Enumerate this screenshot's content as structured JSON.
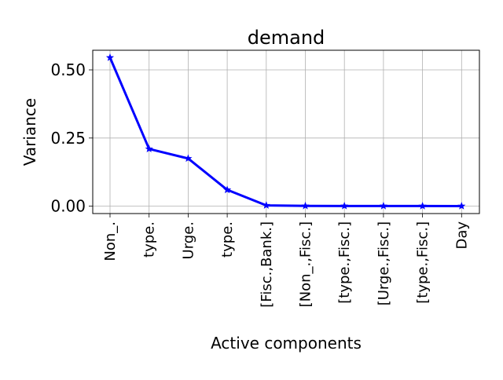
{
  "chart_data": {
    "type": "line",
    "title": "demand",
    "xlabel": "Active components",
    "ylabel": "Variance",
    "categories": [
      "Non_.",
      "type.",
      "Urge.",
      "type.",
      "[Fisc.,Bank.]",
      "[Non_.,Fisc.]",
      "[type.,Fisc.]",
      "[Urge.,Fisc.]",
      "[type.,Fisc.]",
      "Day"
    ],
    "series": [
      {
        "values": [
          0.545,
          0.21,
          0.175,
          0.06,
          0.003,
          0.001,
          0.0008,
          0.0007,
          0.0006,
          0.0005
        ],
        "color": "#0000ff",
        "marker": "star"
      }
    ],
    "yticks": [
      "0.00",
      "0.25",
      "0.50"
    ],
    "ytick_values": [
      0,
      0.25,
      0.5
    ],
    "ylim": [
      -0.027,
      0.572
    ],
    "grid": true
  }
}
